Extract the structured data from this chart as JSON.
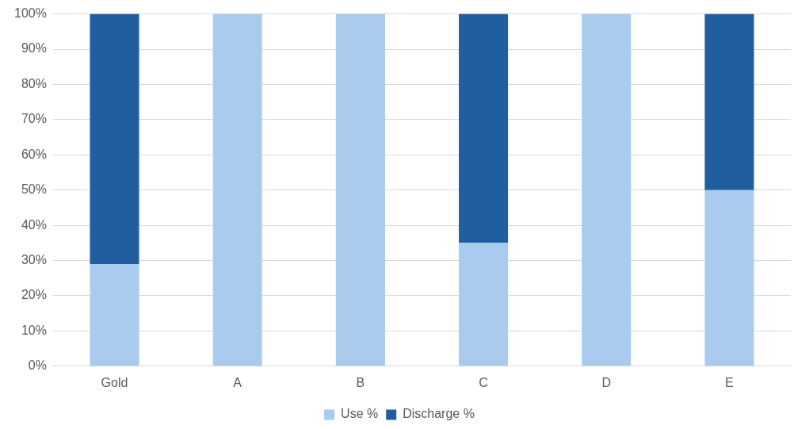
{
  "chart_data": {
    "type": "bar",
    "stacked": true,
    "categories": [
      "Gold",
      "A",
      "B",
      "C",
      "D",
      "E"
    ],
    "series": [
      {
        "name": "Use %",
        "color": "#a9cbed",
        "values": [
          29,
          100,
          100,
          35,
          100,
          50
        ]
      },
      {
        "name": "Discharge %",
        "color": "#1f5f9f",
        "values": [
          71,
          0,
          0,
          65,
          0,
          50
        ]
      }
    ],
    "ylim": [
      0,
      100
    ],
    "yticks": [
      {
        "value": 0,
        "label": "0%"
      },
      {
        "value": 10,
        "label": "10%"
      },
      {
        "value": 20,
        "label": "20%"
      },
      {
        "value": 30,
        "label": "30%"
      },
      {
        "value": 40,
        "label": "40%"
      },
      {
        "value": 50,
        "label": "50%"
      },
      {
        "value": 60,
        "label": "60%"
      },
      {
        "value": 70,
        "label": "70%"
      },
      {
        "value": 80,
        "label": "80%"
      },
      {
        "value": 90,
        "label": "90%"
      },
      {
        "value": 100,
        "label": "100%"
      }
    ],
    "grid": "y",
    "legend": "bottom"
  }
}
